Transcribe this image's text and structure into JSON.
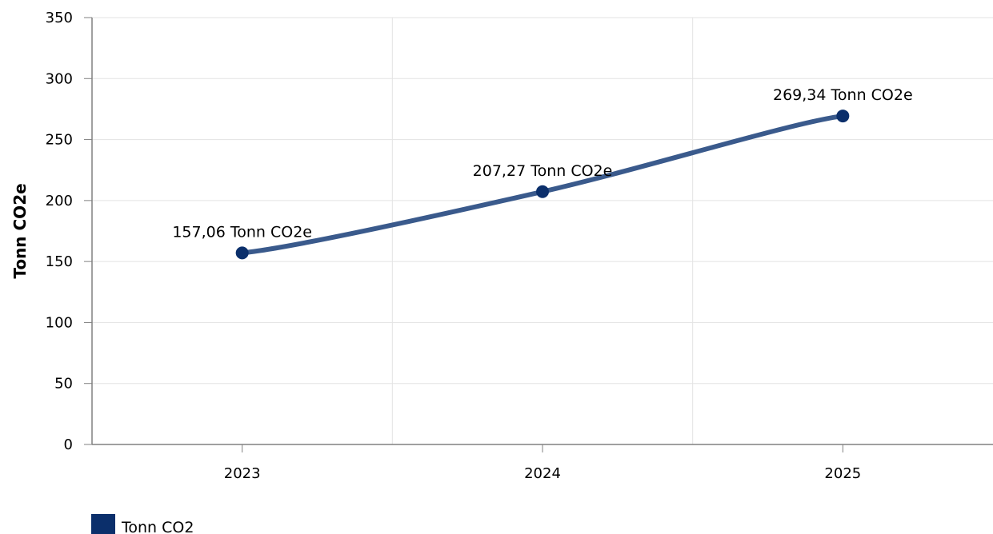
{
  "chart_data": {
    "type": "line",
    "categories": [
      "2023",
      "2024",
      "2025"
    ],
    "series": [
      {
        "name": "Tonn CO2",
        "values": [
          157.06,
          207.27,
          269.34
        ],
        "labels": [
          "157,06 Tonn CO2e",
          "207,27 Tonn CO2e",
          "269,34 Tonn CO2e"
        ]
      }
    ],
    "title": "",
    "xlabel": "",
    "ylabel": "Tonn CO2e",
    "ylim": [
      0,
      350
    ],
    "yticks": [
      "0",
      "50",
      "100",
      "150",
      "200",
      "250",
      "300",
      "350"
    ],
    "grid": true,
    "legend_position": "bottom-left",
    "colors": {
      "line": "#3a5a8c",
      "marker": "#0b2f6b",
      "legend": "#0b2f6b"
    }
  }
}
